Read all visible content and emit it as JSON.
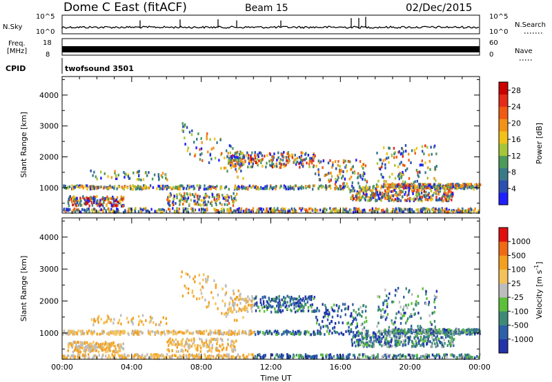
{
  "header": {
    "title": "Dome C East (fitACF)",
    "beam": "Beam 15",
    "date": "02/Dec/2015"
  },
  "panels": {
    "nsky_label": "N.Sky",
    "nsky_ticks": [
      "10^5",
      "10^0"
    ],
    "nsearch_label": "N.Search",
    "freq_label_line1": "Freq.",
    "freq_label_line2": "[MHz]",
    "freq_ticks": [
      "18",
      "8"
    ],
    "nave_label": "Nave",
    "nave_ticks": [
      "60",
      "0"
    ],
    "cpid_label": "CPID",
    "cpid_value": "twofsound 3501"
  },
  "chart_data": [
    {
      "type": "heatmap",
      "title": "",
      "ylabel": "Slant Range [km]",
      "xlabel": "",
      "ylim": [
        180,
        4600
      ],
      "yticks": [
        1000,
        2000,
        3000,
        4000
      ],
      "xticks": [
        "00:00",
        "04:00",
        "08:00",
        "12:00",
        "16:00",
        "20:00",
        "00:00"
      ],
      "colorbar": {
        "label": "Power [dB]",
        "ticks": [
          "4",
          "8",
          "12",
          "16",
          "20",
          "24",
          "28"
        ],
        "colors": [
          "#1e1eff",
          "#2c4fb0",
          "#3a7a88",
          "#4e9a5a",
          "#a6c63a",
          "#f0c21a",
          "#f39219",
          "#ef5a14",
          "#e42a18",
          "#c80000"
        ]
      }
    },
    {
      "type": "heatmap",
      "title": "",
      "ylabel": "Slant Range [km]",
      "xlabel": "Time UT",
      "ylim": [
        180,
        4600
      ],
      "yticks": [
        1000,
        2000,
        3000,
        4000
      ],
      "xticks": [
        "00:00",
        "04:00",
        "08:00",
        "12:00",
        "16:00",
        "20:00",
        "00:00"
      ],
      "colorbar": {
        "label": "Velocity [m s^-1]",
        "ticks": [
          "1000",
          "500",
          "100",
          "25",
          "-25",
          "-100",
          "-500",
          "-1000"
        ],
        "colors": [
          "#2233aa",
          "#2e5fa8",
          "#3e8a76",
          "#5cbf3a",
          "#bdbdbd",
          "#f4c25a",
          "#f3a020",
          "#ef6a14",
          "#e01010"
        ]
      }
    }
  ]
}
